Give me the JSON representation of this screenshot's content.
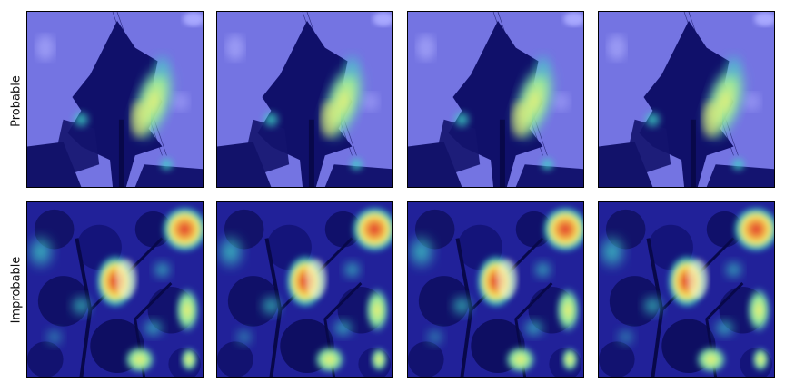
{
  "figure": {
    "rows": [
      {
        "label": "Probable",
        "variant": "probable",
        "panels": 4
      },
      {
        "label": "Improbable",
        "variant": "improbable",
        "panels": 4
      }
    ]
  },
  "colors": {
    "overlay_base": "#3a3acf",
    "sky_probable": "#8080ee",
    "tree_dark": "#0a0a5a",
    "heat_cyan": "#3fd6c8",
    "heat_yellow": "#f2f070",
    "heat_red": "#e0302a"
  }
}
